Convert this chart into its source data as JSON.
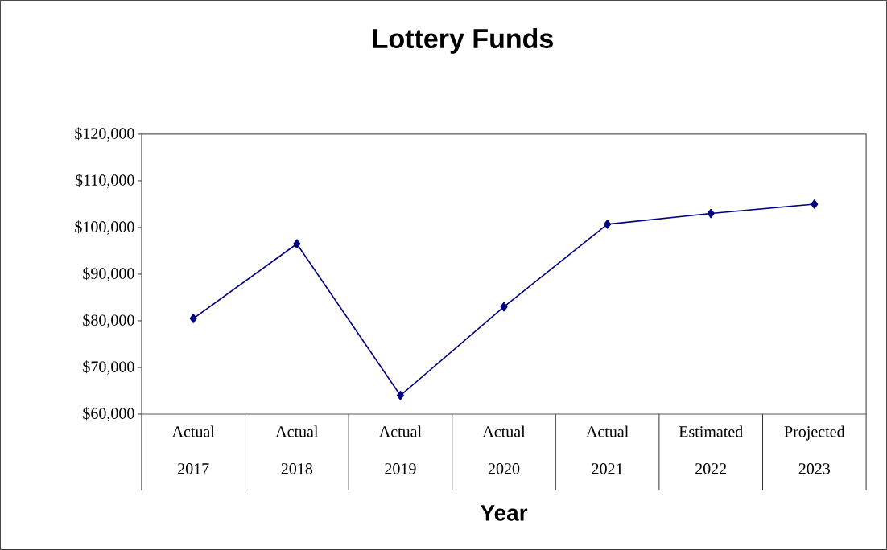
{
  "chart_data": {
    "type": "line",
    "title": "Lottery Funds",
    "xlabel": "Year",
    "categories": [
      "Actual 2017",
      "Actual 2018",
      "Actual 2019",
      "Actual 2020",
      "Actual 2021",
      "Estimated 2022",
      "Projected 2023"
    ],
    "series": [
      {
        "color": "#000080",
        "values": [
          80500,
          96500,
          64000,
          83000,
          100700,
          103000,
          105000
        ]
      }
    ],
    "ylim": [
      60000,
      120000
    ],
    "yticks": [
      {
        "value": 60000,
        "label": "$60,000"
      },
      {
        "value": 70000,
        "label": "$70,000"
      },
      {
        "value": 80000,
        "label": "$80,000"
      },
      {
        "value": 90000,
        "label": "$90,000"
      },
      {
        "value": 100000,
        "label": "$100,000"
      },
      {
        "value": 110000,
        "label": "$110,000"
      },
      {
        "value": 120000,
        "label": "$120,000"
      }
    ],
    "grid": false,
    "marker": "diamond",
    "line_style": "solid"
  }
}
